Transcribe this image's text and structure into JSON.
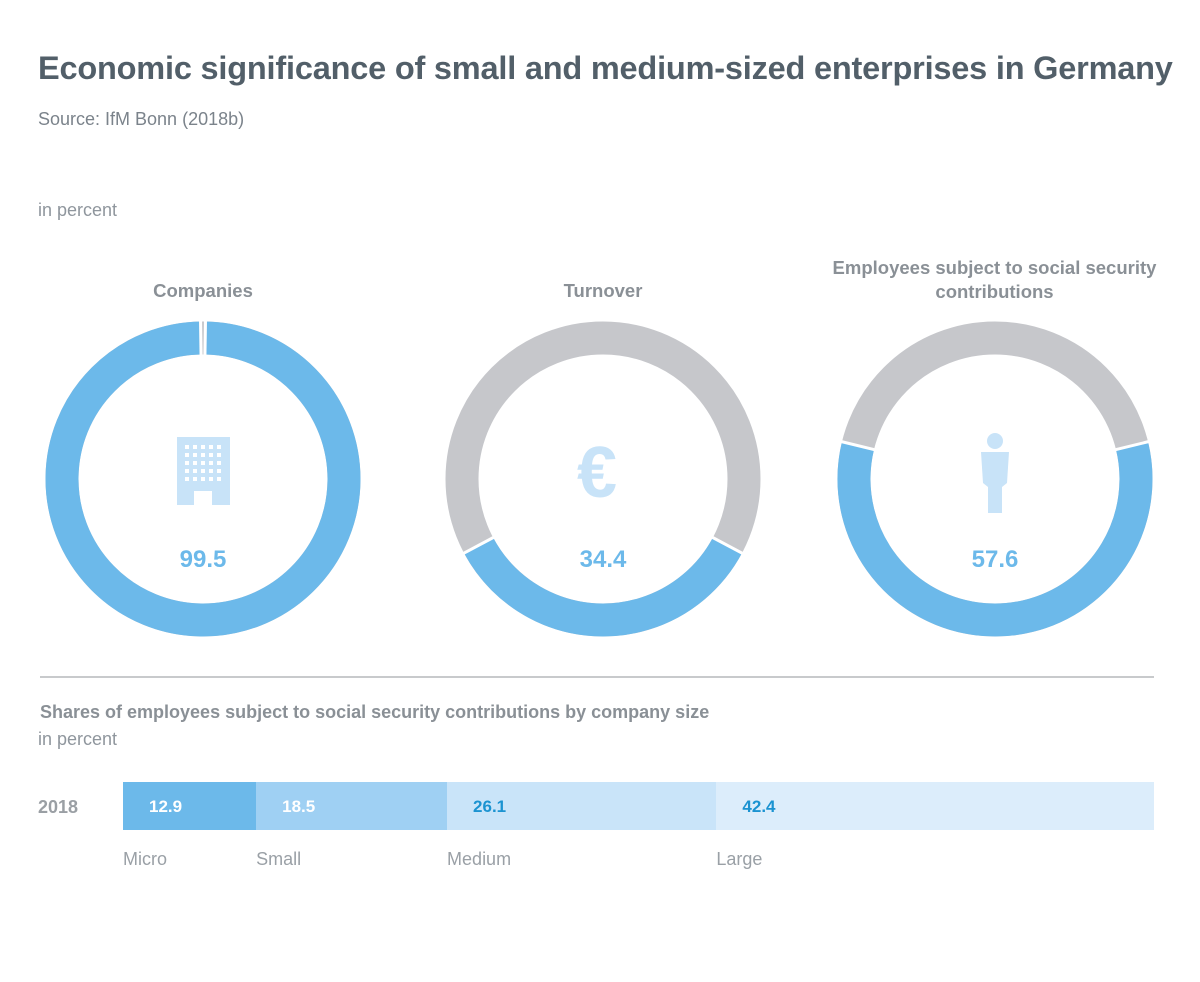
{
  "title": "Economic significance of small and medium-sized enterprises in Germany",
  "source": "Source: IfM Bonn (2018b)",
  "unit_top": "in percent",
  "chart_data": [
    {
      "type": "pie",
      "variant": "donut",
      "title": "Companies",
      "values": [
        99.5,
        0.5
      ],
      "value_label": "99.5",
      "icon": "building-icon",
      "colors": [
        "#6cb9ea",
        "#c6c7cb"
      ]
    },
    {
      "type": "pie",
      "variant": "donut",
      "title": "Turnover",
      "values": [
        34.4,
        65.6
      ],
      "value_label": "34.4",
      "icon": "euro-icon",
      "colors": [
        "#6cb9ea",
        "#c6c7cb"
      ]
    },
    {
      "type": "pie",
      "variant": "donut",
      "title": "Employees subject to social security contributions",
      "values": [
        57.6,
        42.4
      ],
      "value_label": "57.6",
      "icon": "person-icon",
      "colors": [
        "#6cb9ea",
        "#c6c7cb"
      ]
    },
    {
      "type": "bar",
      "orientation": "horizontal",
      "stacked": true,
      "title": "Shares of employees subject to social security contributions by company size",
      "unit": "in percent",
      "categories": [
        "2018"
      ],
      "series": [
        {
          "name": "Micro",
          "values": [
            12.9
          ],
          "label": "12.9",
          "color": "#6cb9ea",
          "label_color": "#ffffff"
        },
        {
          "name": "Small",
          "values": [
            18.5
          ],
          "label": "18.5",
          "color": "#9fd0f3",
          "label_color": "#ffffff"
        },
        {
          "name": "Medium",
          "values": [
            26.1
          ],
          "label": "26.1",
          "color": "#c9e4f9",
          "label_color": "#1b93d1"
        },
        {
          "name": "Large",
          "values": [
            42.4
          ],
          "label": "42.4",
          "color": "#dcedfb",
          "label_color": "#1b93d1"
        }
      ]
    }
  ],
  "colors": {
    "accent": "#6cb9ea",
    "rest": "#c6c7cb",
    "icon": "#c8e3f8",
    "value_text": "#6cb9ea"
  }
}
